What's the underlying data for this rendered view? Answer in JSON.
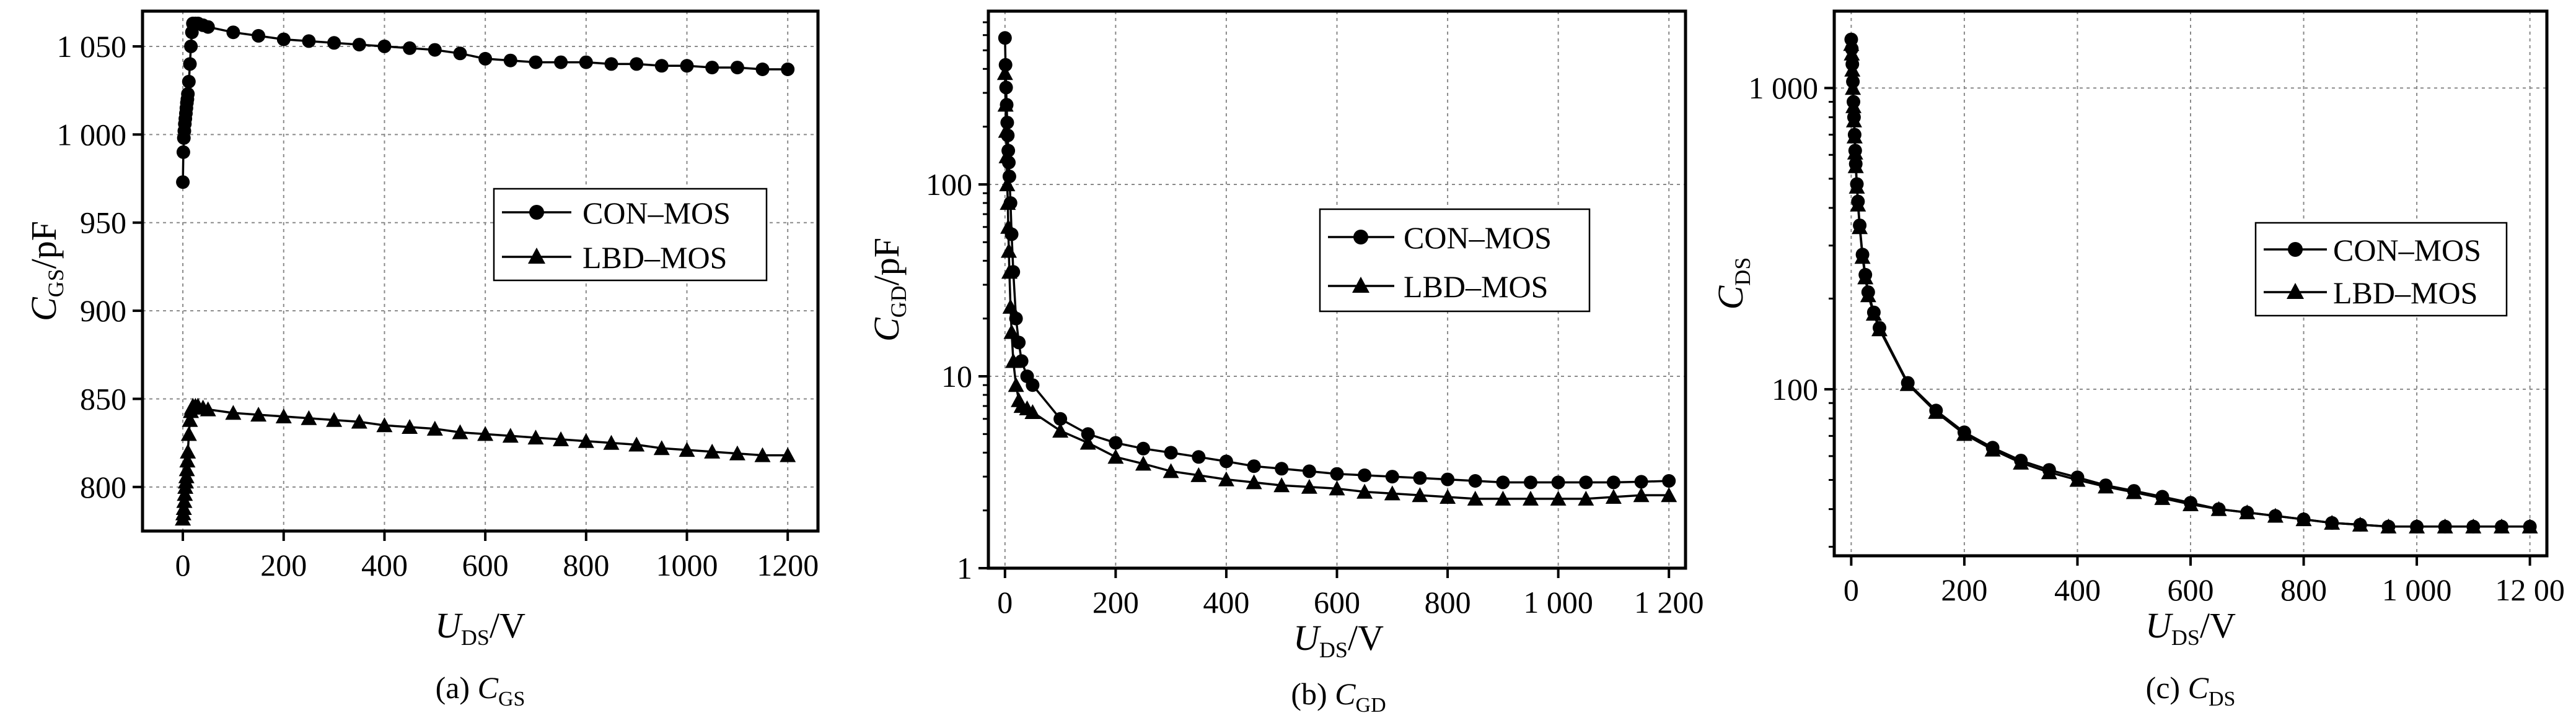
{
  "chart_data": [
    {
      "type": "line",
      "caption": {
        "prefix": "(a) ",
        "var": "C",
        "sub": "GS"
      },
      "xlabel": {
        "var": "U",
        "sub": "DS",
        "unit": "/V"
      },
      "ylabel": {
        "var": "C",
        "sub": "GS",
        "unit": "/pF"
      },
      "xlim": [
        -80,
        1260
      ],
      "ylim": [
        775,
        1070
      ],
      "yscale": "linear",
      "xticks": [
        0,
        200,
        400,
        600,
        800,
        1000,
        1200
      ],
      "xtick_labels": [
        "0",
        "200",
        "400",
        "600",
        "800",
        "1000",
        "1200"
      ],
      "yticks": [
        800,
        850,
        900,
        950,
        1000,
        1050
      ],
      "ytick_labels": [
        "800",
        "850",
        "900",
        "950",
        "1 000",
        "1 050"
      ],
      "grid": true,
      "legend_position": "right-middle",
      "series": [
        {
          "name": "CON–MOS",
          "marker": "circle",
          "x": [
            0,
            1,
            2,
            3,
            4,
            5,
            6,
            7,
            8,
            9,
            10,
            12,
            14,
            16,
            18,
            20,
            25,
            30,
            40,
            50,
            100,
            150,
            200,
            250,
            300,
            350,
            400,
            450,
            500,
            550,
            600,
            650,
            700,
            750,
            800,
            850,
            900,
            950,
            1000,
            1050,
            1100,
            1150,
            1200
          ],
          "y": [
            973,
            990,
            998,
            1002,
            1006,
            1009,
            1012,
            1015,
            1018,
            1020,
            1023,
            1030,
            1040,
            1050,
            1058,
            1063,
            1063,
            1063,
            1062,
            1061,
            1058,
            1056,
            1054,
            1053,
            1052,
            1051,
            1050,
            1049,
            1048,
            1046,
            1043,
            1042,
            1041,
            1041,
            1041,
            1040,
            1040,
            1039,
            1039,
            1038,
            1038,
            1037,
            1037
          ]
        },
        {
          "name": "LBD–MOS",
          "marker": "triangle",
          "x": [
            0,
            1,
            2,
            3,
            4,
            5,
            6,
            7,
            8,
            9,
            10,
            12,
            14,
            16,
            18,
            20,
            25,
            30,
            40,
            50,
            100,
            150,
            200,
            250,
            300,
            350,
            400,
            450,
            500,
            550,
            600,
            650,
            700,
            750,
            800,
            850,
            900,
            950,
            1000,
            1050,
            1100,
            1150,
            1200
          ],
          "y": [
            782,
            785,
            788,
            792,
            796,
            800,
            803,
            806,
            810,
            815,
            820,
            830,
            838,
            843,
            845,
            846,
            846,
            846,
            845,
            844,
            842,
            841,
            840,
            839,
            838,
            837,
            835,
            834,
            833,
            831,
            830,
            829,
            828,
            827,
            826,
            825,
            824,
            822,
            821,
            820,
            819,
            818,
            818
          ]
        }
      ]
    },
    {
      "type": "line",
      "caption": {
        "prefix": "(b) ",
        "var": "C",
        "sub": "GD"
      },
      "xlabel": {
        "var": "U",
        "sub": "DS",
        "unit": "/V"
      },
      "ylabel": {
        "var": "C",
        "sub": "GD",
        "unit": "/pF"
      },
      "xlim": [
        -30,
        1230
      ],
      "ylim": [
        1,
        800
      ],
      "yscale": "log",
      "xticks": [
        0,
        200,
        400,
        600,
        800,
        1000,
        1200
      ],
      "xtick_labels": [
        "0",
        "200",
        "400",
        "600",
        "800",
        "1 000",
        "1 200"
      ],
      "yticks": [
        1,
        10,
        100
      ],
      "ytick_labels": [
        "1",
        "10",
        "100"
      ],
      "grid": true,
      "legend_position": "right-middle",
      "series": [
        {
          "name": "CON–MOS",
          "marker": "circle",
          "x": [
            0,
            1,
            2,
            3,
            4,
            5,
            6,
            7,
            8,
            10,
            12,
            15,
            20,
            25,
            30,
            40,
            50,
            100,
            150,
            200,
            250,
            300,
            350,
            400,
            450,
            500,
            550,
            600,
            650,
            700,
            750,
            800,
            850,
            900,
            950,
            1000,
            1050,
            1100,
            1150,
            1200
          ],
          "y": [
            580,
            420,
            320,
            260,
            210,
            180,
            150,
            130,
            110,
            80,
            55,
            35,
            20,
            15,
            12,
            10,
            9,
            6,
            5,
            4.5,
            4.2,
            4,
            3.8,
            3.6,
            3.4,
            3.3,
            3.2,
            3.1,
            3.05,
            3,
            2.95,
            2.9,
            2.85,
            2.8,
            2.8,
            2.8,
            2.8,
            2.8,
            2.82,
            2.85
          ]
        },
        {
          "name": "LBD–MOS",
          "marker": "triangle",
          "x": [
            0,
            1,
            2,
            3,
            4,
            5,
            6,
            7,
            8,
            10,
            12,
            15,
            20,
            25,
            30,
            40,
            50,
            100,
            150,
            200,
            250,
            300,
            350,
            400,
            450,
            500,
            550,
            600,
            650,
            700,
            750,
            800,
            850,
            900,
            950,
            1000,
            1050,
            1100,
            1150,
            1200
          ],
          "y": [
            380,
            260,
            190,
            140,
            100,
            80,
            60,
            45,
            35,
            23,
            17,
            12,
            9,
            7.5,
            7,
            6.8,
            6.5,
            5.2,
            4.5,
            3.8,
            3.5,
            3.2,
            3.05,
            2.9,
            2.8,
            2.7,
            2.65,
            2.6,
            2.5,
            2.45,
            2.4,
            2.35,
            2.3,
            2.3,
            2.3,
            2.3,
            2.3,
            2.35,
            2.4,
            2.4
          ]
        }
      ]
    },
    {
      "type": "line",
      "caption": {
        "prefix": "(c) ",
        "var": "C",
        "sub": "DS"
      },
      "xlabel": {
        "var": "U",
        "sub": "DS",
        "unit": "/V"
      },
      "ylabel": {
        "var": "C",
        "sub": "DS",
        "unit": ""
      },
      "xlim": [
        -30,
        1230
      ],
      "ylim": [
        28,
        1800
      ],
      "yscale": "log",
      "xticks": [
        0,
        200,
        400,
        600,
        800,
        1000,
        1200
      ],
      "xtick_labels": [
        "0",
        "200",
        "400",
        "600",
        "800",
        "1 000",
        "12 00"
      ],
      "yticks": [
        100,
        1000
      ],
      "ytick_labels": [
        "100",
        "1 000"
      ],
      "grid": true,
      "legend_position": "right-middle",
      "series": [
        {
          "name": "CON–MOS",
          "marker": "circle",
          "x": [
            0,
            1,
            2,
            3,
            4,
            5,
            6,
            7,
            8,
            10,
            12,
            15,
            20,
            25,
            30,
            40,
            50,
            100,
            150,
            200,
            250,
            300,
            350,
            400,
            450,
            500,
            550,
            600,
            650,
            700,
            750,
            800,
            850,
            900,
            950,
            1000,
            1050,
            1100,
            1150,
            1200
          ],
          "y": [
            1450,
            1350,
            1200,
            1050,
            900,
            800,
            700,
            620,
            560,
            480,
            420,
            350,
            280,
            240,
            210,
            180,
            160,
            105,
            85,
            72,
            64,
            58,
            54,
            51,
            48,
            46,
            44,
            42,
            40,
            39,
            38,
            37,
            36,
            35.5,
            35,
            35,
            35,
            35,
            35,
            35
          ]
        },
        {
          "name": "LBD–MOS",
          "marker": "triangle",
          "x": [
            0,
            1,
            2,
            3,
            4,
            5,
            6,
            7,
            8,
            10,
            12,
            15,
            20,
            25,
            30,
            40,
            50,
            100,
            150,
            200,
            250,
            300,
            350,
            400,
            450,
            500,
            550,
            600,
            650,
            700,
            750,
            800,
            850,
            900,
            950,
            1000,
            1050,
            1100,
            1150,
            1200
          ],
          "y": [
            1400,
            1300,
            1150,
            1000,
            870,
            780,
            690,
            610,
            550,
            470,
            410,
            345,
            275,
            235,
            205,
            178,
            158,
            104,
            84,
            71,
            63,
            57,
            53,
            50,
            47.5,
            45.5,
            43.5,
            41.5,
            40,
            39,
            38,
            37,
            36,
            35.5,
            35,
            35,
            35,
            35,
            35,
            35
          ]
        }
      ]
    }
  ]
}
